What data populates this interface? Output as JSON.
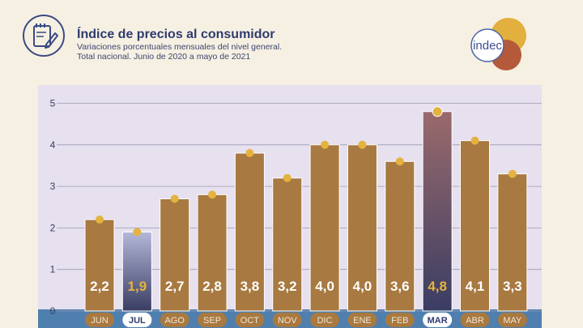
{
  "header": {
    "title": "Índice de precios al consumidor",
    "subtitle_line1": "Variaciones porcentuales mensuales del nivel general.",
    "subtitle_line2": "Total nacional. Junio de 2020 a mayo de 2021",
    "logo_text": "indec"
  },
  "colors": {
    "background": "#f6f0e3",
    "plot_background": "#e6e0ef",
    "bar": "#a87940",
    "bar_highlight_top_jul": "#b3b8d9",
    "bar_highlight_bottom": "#3a3d63",
    "bar_highlight_top_mar": "#9a6a6c",
    "marker": "#e4b33f",
    "label_text": "#ffffff",
    "label_highlight_text": "#e8b33c",
    "axis_band": "#4f7fae",
    "title": "#2f3b6e",
    "logo_gold": "#e2b03e",
    "logo_red": "#b45a3a",
    "logo_blue": "#4c63a6"
  },
  "chart_data": {
    "type": "bar",
    "categories": [
      "JUN",
      "JUL",
      "AGO",
      "SEP",
      "OCT",
      "NOV",
      "DIC",
      "ENE",
      "FEB",
      "MAR",
      "ABR",
      "MAY"
    ],
    "values": [
      2.2,
      1.9,
      2.7,
      2.8,
      3.8,
      3.2,
      4.0,
      4.0,
      3.6,
      4.8,
      4.1,
      3.3
    ],
    "value_labels": [
      "2,2",
      "1,9",
      "2,7",
      "2,8",
      "3,8",
      "3,2",
      "4,0",
      "4,0",
      "3,6",
      "4,8",
      "4,1",
      "3,3"
    ],
    "highlighted": [
      "JUL",
      "MAR"
    ],
    "y_ticks": [
      "0",
      "1",
      "2",
      "3",
      "4",
      "5"
    ],
    "ylim": [
      0,
      5.4
    ],
    "grid": true,
    "title": "",
    "xlabel": "",
    "ylabel": ""
  }
}
